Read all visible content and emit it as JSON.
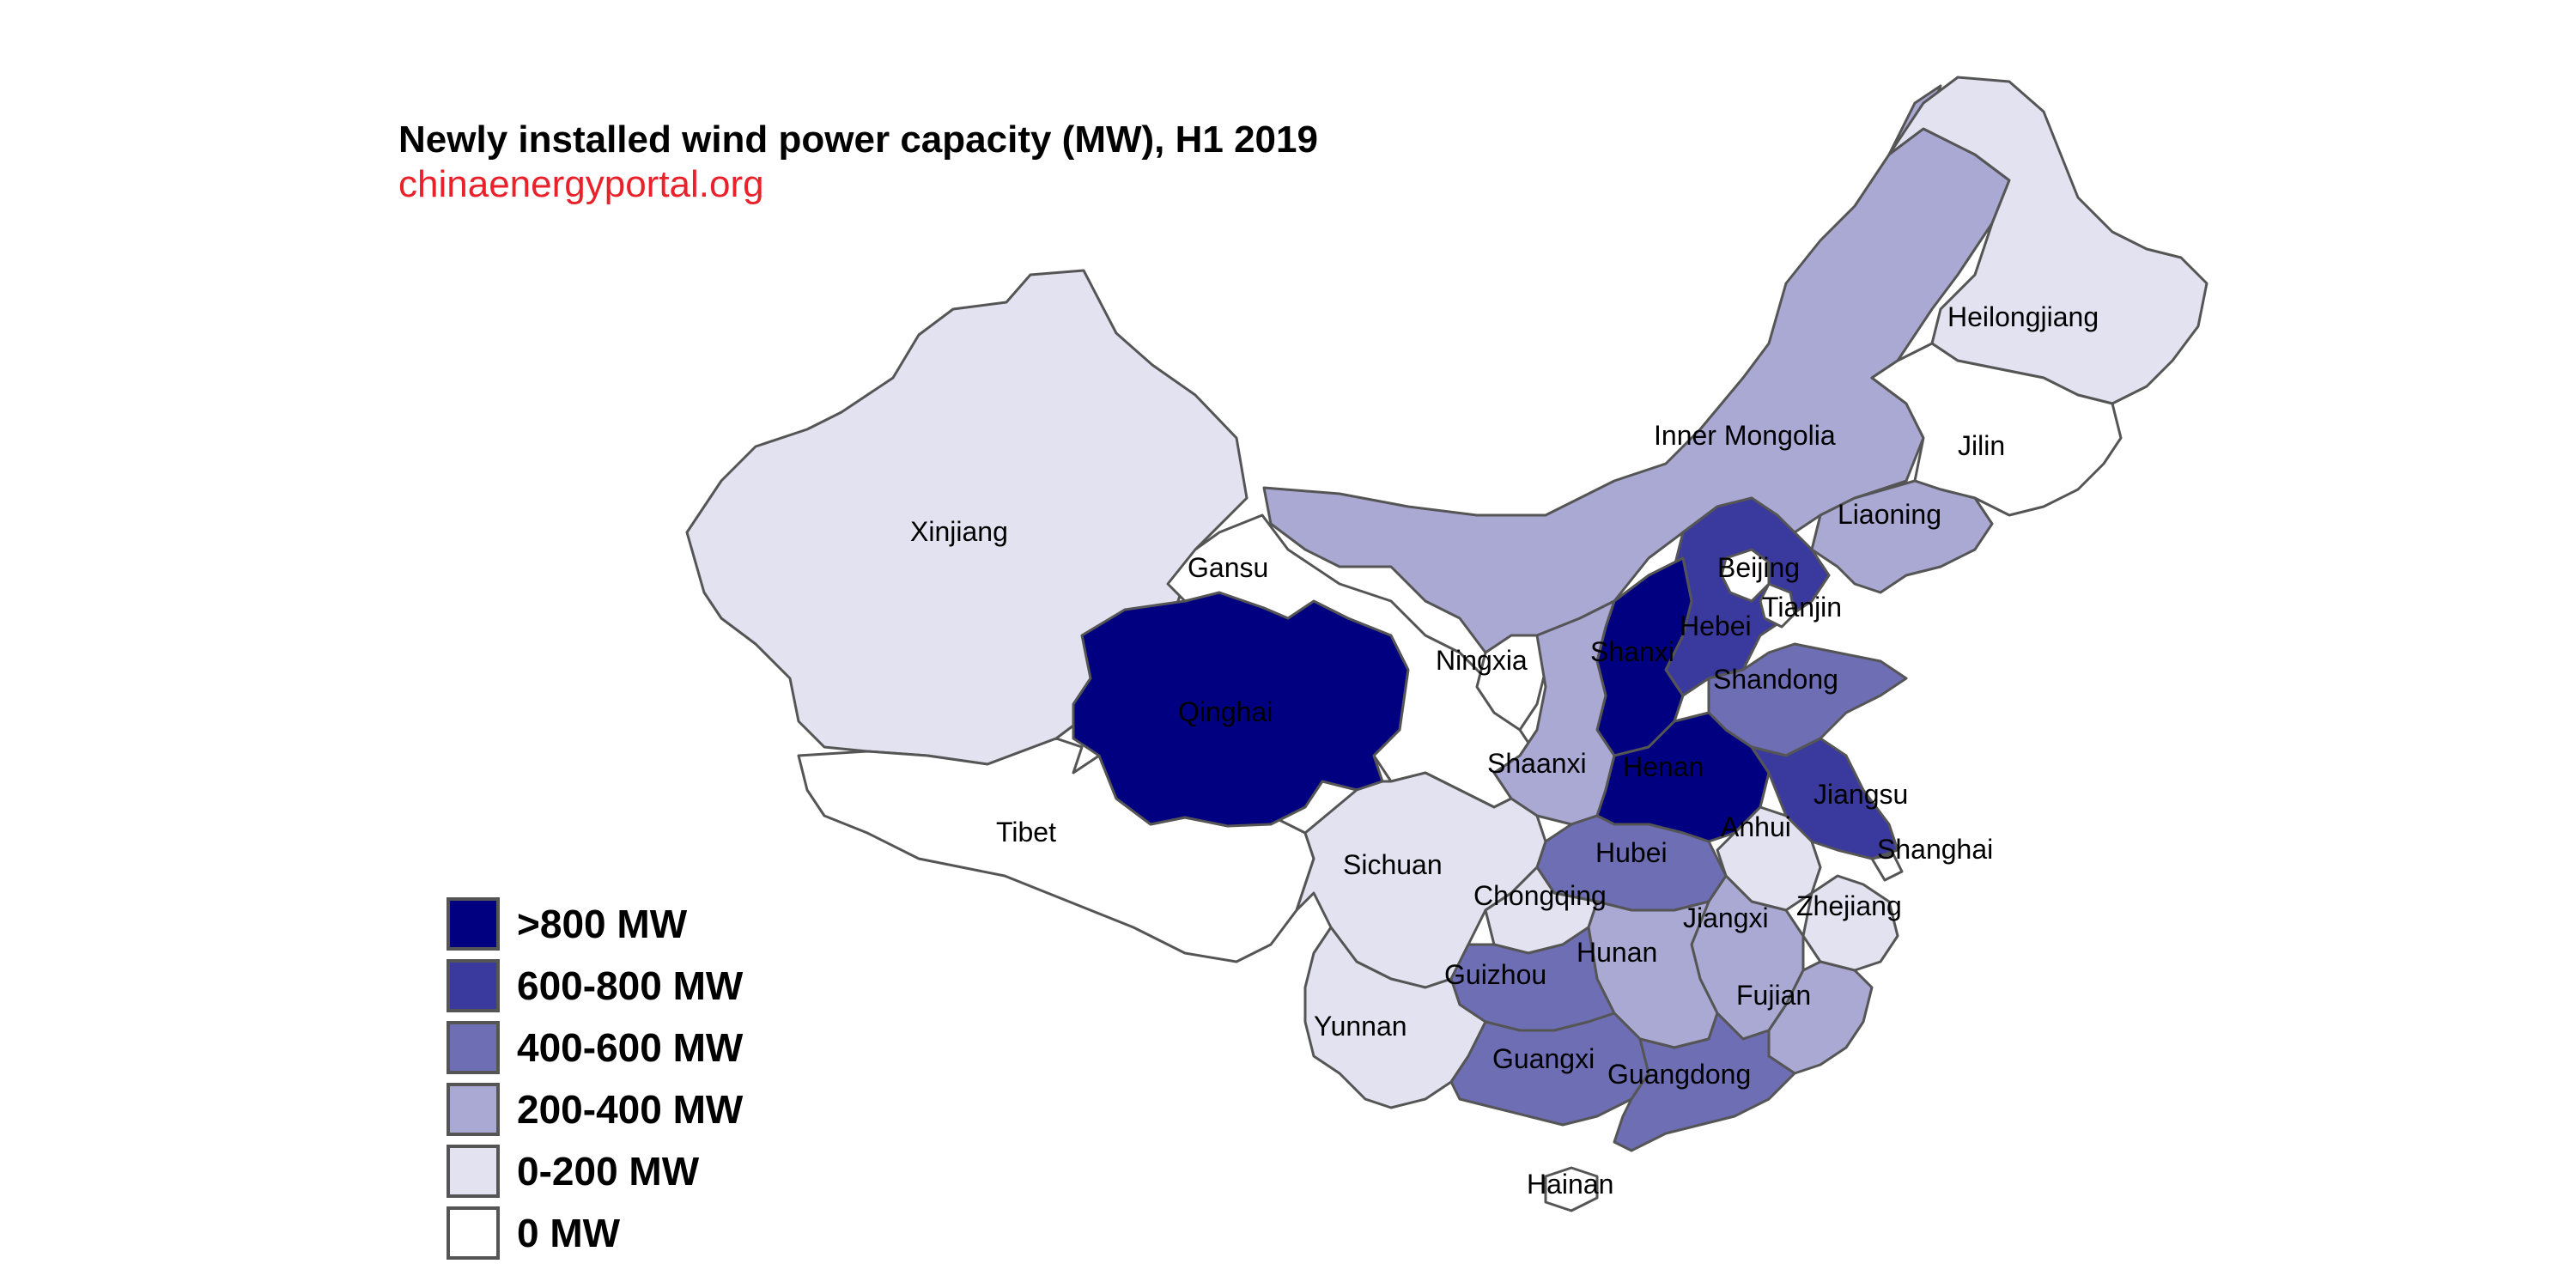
{
  "title": "Newly installed wind power capacity (MW), H1 2019",
  "source": "chinaenergyportal.org",
  "legend": [
    {
      "label": ">800 MW",
      "color": "#000080"
    },
    {
      "label": "600-800 MW",
      "color": "#3a3a9e"
    },
    {
      "label": "400-600 MW",
      "color": "#6e6eb5"
    },
    {
      "label": "200-400 MW",
      "color": "#a9a9d4"
    },
    {
      "label": "0-200 MW",
      "color": "#e2e2f0"
    },
    {
      "label": "0 MW",
      "color": "#ffffff"
    }
  ],
  "provinces": [
    {
      "id": "xinjiang",
      "name": "Xinjiang",
      "category": "0-200 MW"
    },
    {
      "id": "tibet",
      "name": "Tibet",
      "category": "0 MW"
    },
    {
      "id": "qinghai",
      "name": "Qinghai",
      "category": ">800 MW"
    },
    {
      "id": "gansu",
      "name": "Gansu",
      "category": "0 MW"
    },
    {
      "id": "inner-mongolia",
      "name": "Inner Mongolia",
      "category": "200-400 MW"
    },
    {
      "id": "heilongjiang",
      "name": "Heilongjiang",
      "category": "0-200 MW"
    },
    {
      "id": "jilin",
      "name": "Jilin",
      "category": "0 MW"
    },
    {
      "id": "liaoning",
      "name": "Liaoning",
      "category": "200-400 MW"
    },
    {
      "id": "hebei",
      "name": "Hebei",
      "category": "600-800 MW"
    },
    {
      "id": "beijing",
      "name": "Beijing",
      "category": "0 MW"
    },
    {
      "id": "tianjin",
      "name": "Tianjin",
      "category": "0 MW"
    },
    {
      "id": "shanxi",
      "name": "Shanxi",
      "category": ">800 MW"
    },
    {
      "id": "ningxia",
      "name": "Ningxia",
      "category": "0 MW"
    },
    {
      "id": "shaanxi",
      "name": "Shaanxi",
      "category": "200-400 MW"
    },
    {
      "id": "shandong",
      "name": "Shandong",
      "category": "400-600 MW"
    },
    {
      "id": "henan",
      "name": "Henan",
      "category": ">800 MW"
    },
    {
      "id": "jiangsu",
      "name": "Jiangsu",
      "category": "600-800 MW"
    },
    {
      "id": "anhui",
      "name": "Anhui",
      "category": "0-200 MW"
    },
    {
      "id": "shanghai",
      "name": "Shanghai",
      "category": "0 MW"
    },
    {
      "id": "hubei",
      "name": "Hubei",
      "category": "400-600 MW"
    },
    {
      "id": "sichuan",
      "name": "Sichuan",
      "category": "0-200 MW"
    },
    {
      "id": "chongqing",
      "name": "Chongqing",
      "category": "0-200 MW"
    },
    {
      "id": "zhejiang",
      "name": "Zhejiang",
      "category": "0-200 MW"
    },
    {
      "id": "jiangxi",
      "name": "Jiangxi",
      "category": "200-400 MW"
    },
    {
      "id": "hunan",
      "name": "Hunan",
      "category": "200-400 MW"
    },
    {
      "id": "guizhou",
      "name": "Guizhou",
      "category": "400-600 MW"
    },
    {
      "id": "fujian",
      "name": "Fujian",
      "category": "200-400 MW"
    },
    {
      "id": "yunnan",
      "name": "Yunnan",
      "category": "0-200 MW"
    },
    {
      "id": "guangxi",
      "name": "Guangxi",
      "category": "400-600 MW"
    },
    {
      "id": "guangdong",
      "name": "Guangdong",
      "category": "400-600 MW"
    },
    {
      "id": "hainan",
      "name": "Hainan",
      "category": "0 MW"
    }
  ]
}
